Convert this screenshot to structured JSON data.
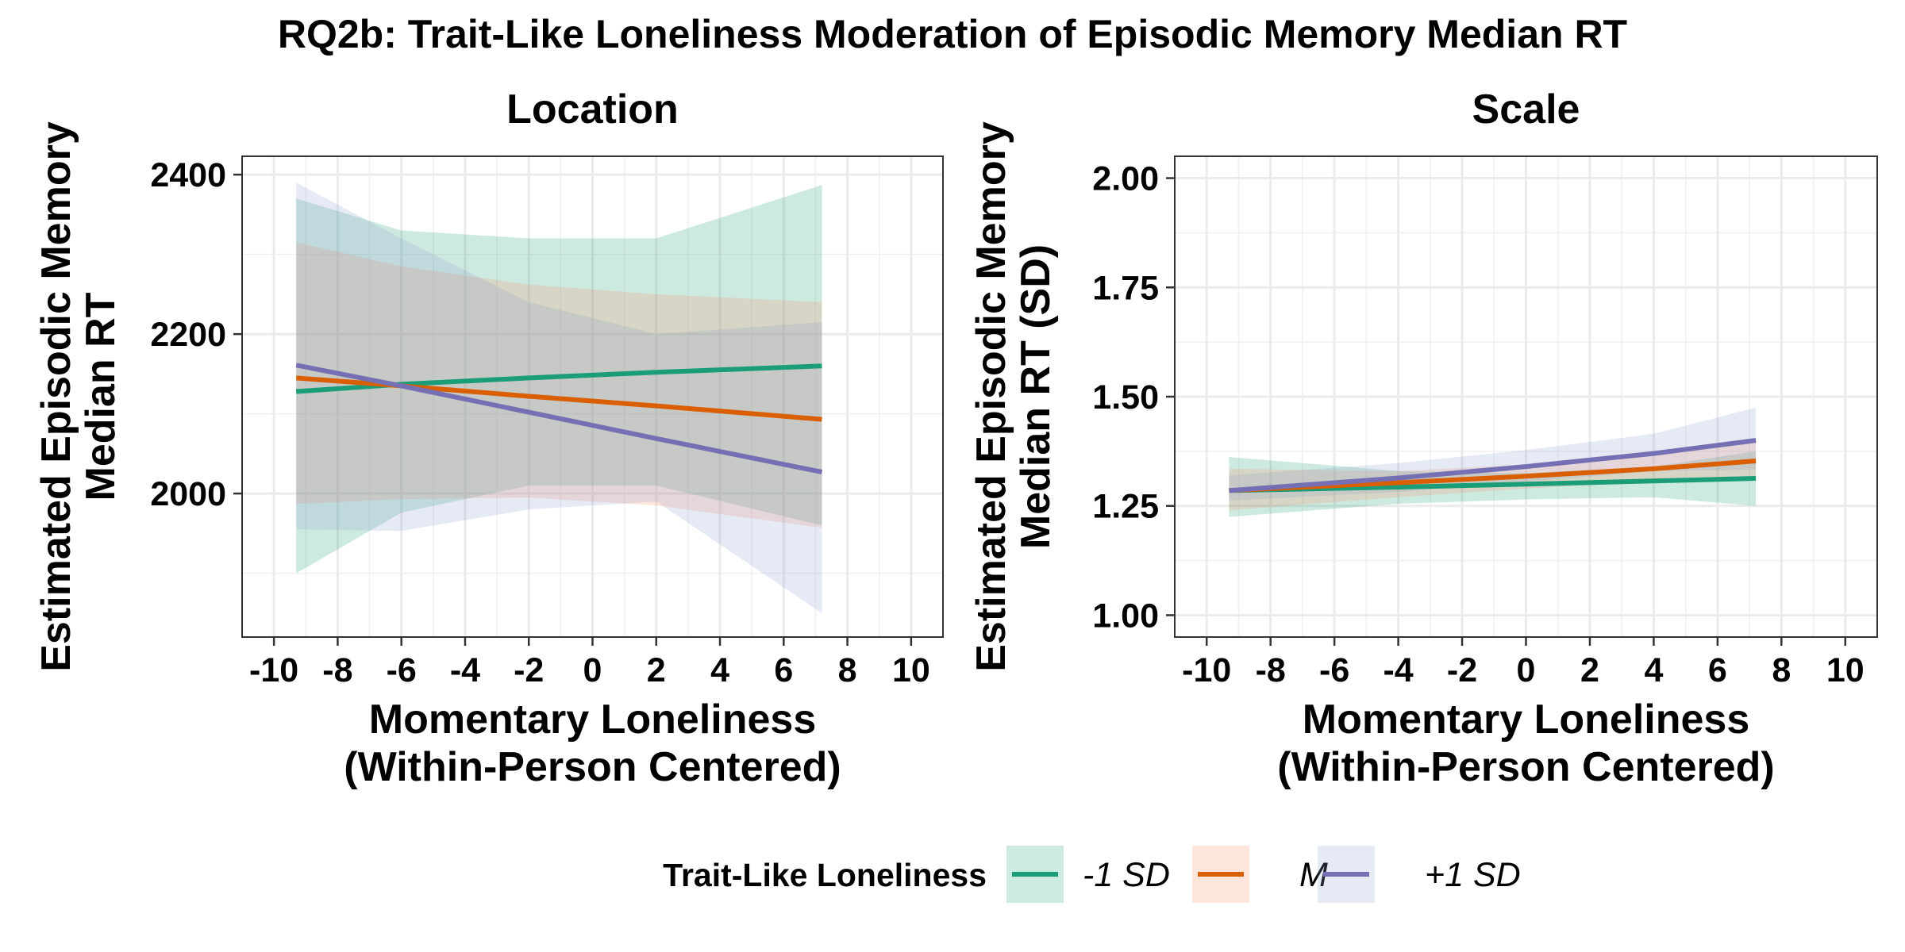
{
  "title": "RQ2b: Trait-Like Loneliness Moderation of Episodic Memory Median RT",
  "legend": {
    "title": "Trait-Like Loneliness",
    "position": "bottom"
  },
  "chart_data": [
    {
      "type": "line",
      "panel": "Location",
      "title": "Location",
      "xlabel": "Momentary Loneliness\n(Within-Person Centered)",
      "ylabel": "Estimated Episodic Memory\nMedian RT",
      "xlim": [
        -11,
        11
      ],
      "ylim": [
        1820,
        2423
      ],
      "xticks": [
        -10,
        -8,
        -6,
        -4,
        -2,
        0,
        2,
        4,
        6,
        8,
        10
      ],
      "xtick_labels": [
        "-10",
        "-8",
        "-6",
        "-4",
        "-2",
        "0",
        "2",
        "4",
        "6",
        "8",
        "10"
      ],
      "yticks": [
        2000,
        2200,
        2400
      ],
      "ytick_labels": [
        "2000",
        "2200",
        "2400"
      ],
      "grid": true,
      "series": [
        {
          "name": "-1 SD",
          "color": "#1b9e77",
          "fill": "#1b9e77",
          "x": [
            -9.3,
            -6,
            -2,
            2,
            7.2
          ],
          "y": [
            2128,
            2137,
            2145,
            2152,
            2160
          ],
          "lower": [
            1900,
            1976,
            2010,
            2010,
            1960
          ],
          "upper": [
            2370,
            2330,
            2320,
            2320,
            2387
          ]
        },
        {
          "name": "M",
          "color": "#d95f02",
          "fill": "#fc8d62",
          "x": [
            -9.3,
            -6,
            -2,
            2,
            7.2
          ],
          "y": [
            2145,
            2135,
            2122,
            2110,
            2093
          ],
          "lower": [
            1987,
            1993,
            1995,
            1985,
            1957
          ],
          "upper": [
            2315,
            2285,
            2262,
            2250,
            2240
          ]
        },
        {
          "name": "+1 SD",
          "color": "#7570b3",
          "fill": "#8da0cb",
          "x": [
            -9.3,
            -6,
            -2,
            2,
            7.2
          ],
          "y": [
            2161,
            2135,
            2102,
            2069,
            2027
          ],
          "lower": [
            1955,
            1953,
            1980,
            1990,
            1850
          ],
          "upper": [
            2390,
            2320,
            2240,
            2200,
            2215
          ]
        }
      ]
    },
    {
      "type": "line",
      "panel": "Scale",
      "title": "Scale",
      "xlabel": "Momentary Loneliness\n(Within-Person Centered)",
      "ylabel": "Estimated Episodic Memory\nMedian RT (SD)",
      "xlim": [
        -11,
        11
      ],
      "ylim": [
        0.95,
        2.05
      ],
      "xticks": [
        -10,
        -8,
        -6,
        -4,
        -2,
        0,
        2,
        4,
        6,
        8,
        10
      ],
      "xtick_labels": [
        "-10",
        "-8",
        "-6",
        "-4",
        "-2",
        "0",
        "2",
        "4",
        "6",
        "8",
        "10"
      ],
      "yticks": [
        1.0,
        1.25,
        1.5,
        1.75,
        2.0
      ],
      "ytick_labels": [
        "1.00",
        "1.25",
        "1.50",
        "1.75",
        "2.00"
      ],
      "grid": true,
      "series": [
        {
          "name": "-1 SD",
          "color": "#1b9e77",
          "fill": "#1b9e77",
          "x": [
            -9.3,
            -4,
            0,
            4,
            7.2
          ],
          "y": [
            1.285,
            1.293,
            1.3,
            1.307,
            1.313
          ],
          "lower": [
            1.225,
            1.255,
            1.265,
            1.27,
            1.25
          ],
          "upper": [
            1.362,
            1.33,
            1.325,
            1.34,
            1.375
          ]
        },
        {
          "name": "M",
          "color": "#d95f02",
          "fill": "#fc8d62",
          "x": [
            -9.3,
            -4,
            0,
            4,
            7.2
          ],
          "y": [
            1.285,
            1.303,
            1.318,
            1.335,
            1.353
          ],
          "lower": [
            1.24,
            1.27,
            1.29,
            1.305,
            1.31
          ],
          "upper": [
            1.335,
            1.33,
            1.345,
            1.37,
            1.405
          ]
        },
        {
          "name": "+1 SD",
          "color": "#7570b3",
          "fill": "#8da0cb",
          "x": [
            -9.3,
            -4,
            0,
            4,
            7.2
          ],
          "y": [
            1.285,
            1.314,
            1.34,
            1.37,
            1.4
          ],
          "lower": [
            1.262,
            1.282,
            1.305,
            1.33,
            1.333
          ],
          "upper": [
            1.32,
            1.348,
            1.378,
            1.415,
            1.475
          ]
        }
      ]
    }
  ]
}
